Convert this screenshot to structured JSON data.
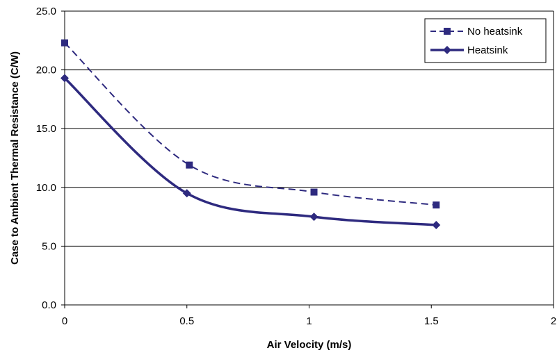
{
  "chart_data": {
    "type": "line",
    "title": "",
    "xlabel": "Air Velocity (m/s)",
    "ylabel": "Case to Ambient Thermal Resistance (C/W)",
    "xlim": [
      0,
      2
    ],
    "ylim": [
      0,
      25
    ],
    "x_ticks": [
      "0",
      "0.5",
      "1",
      "1.5",
      "2"
    ],
    "y_ticks": [
      "0.0",
      "5.0",
      "10.0",
      "15.0",
      "20.0",
      "25.0"
    ],
    "grid": "horizontal",
    "legend_position": "top-right",
    "series": [
      {
        "name": "No heatsink",
        "color": "#2e2a7f",
        "line_style": "dashed",
        "marker": "square",
        "x": [
          0,
          0.51,
          1.02,
          1.52
        ],
        "values": [
          22.3,
          11.9,
          9.6,
          8.5
        ]
      },
      {
        "name": "Heatsink",
        "color": "#2e2a7f",
        "line_style": "solid",
        "marker": "diamond",
        "x": [
          0,
          0.5,
          1.02,
          1.52
        ],
        "values": [
          19.3,
          9.5,
          7.5,
          6.8
        ]
      }
    ]
  }
}
